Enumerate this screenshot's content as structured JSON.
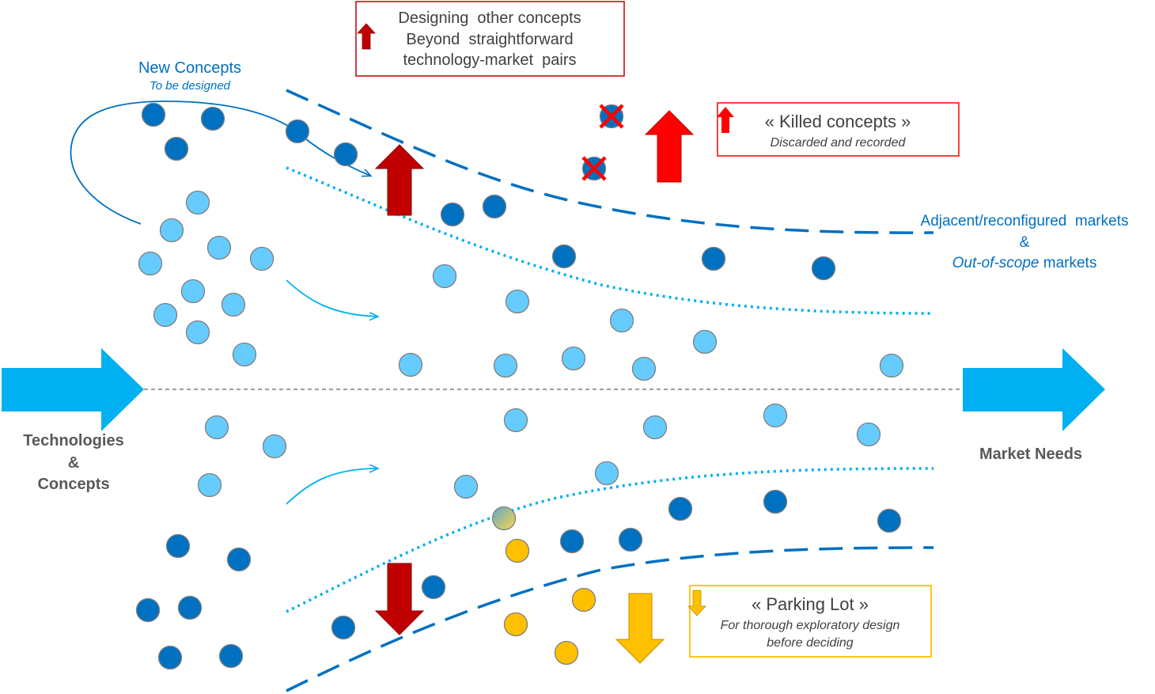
{
  "new_concepts": {
    "title": "New Concepts",
    "subtitle": "To be designed"
  },
  "designing_box": {
    "line1": "Designing  other concepts",
    "line2": "Beyond  straightforward",
    "line3": "technology-market  pairs"
  },
  "killed_box": {
    "title": "« Killed concepts »",
    "subtitle": "Discarded and recorded"
  },
  "adjacent": {
    "line1": "Adjacent/reconfigured  markets",
    "line2": "&",
    "line3_italic": "Out-of-scope",
    "line3_rest": " markets"
  },
  "parking_box": {
    "title": "« Parking Lot »",
    "line1": "For thorough exploratory design",
    "line2": "before deciding"
  },
  "left_label": {
    "line1": "Technologies",
    "line2": "&",
    "line3": "Concepts"
  },
  "right_label": "Market Needs",
  "colors": {
    "dark_blue": "#0070c0",
    "light_blue": "#66ccff",
    "cyan_arrow": "#00b0f0",
    "dark_red": "#c00000",
    "red": "#ff0000",
    "orange": "#ffc000"
  }
}
